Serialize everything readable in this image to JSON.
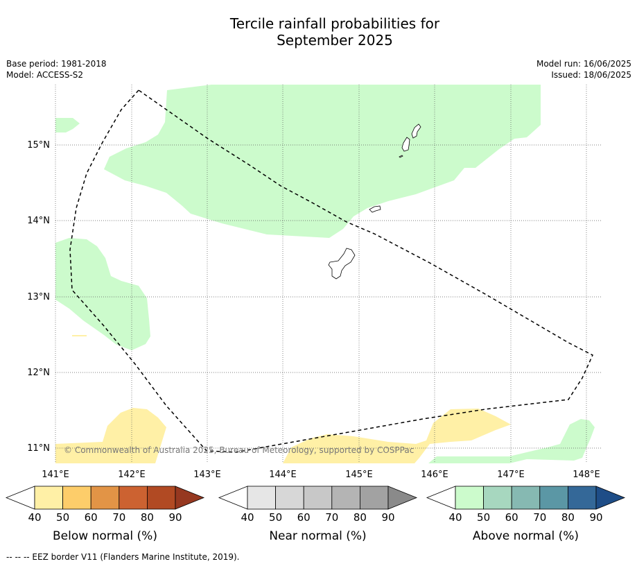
{
  "title_line1": "Tercile rainfall probabilities for",
  "title_line2": "September 2025",
  "base_period": "Base period: 1981-2018",
  "model": "Model: ACCESS-S2",
  "model_run": "Model run: 16/06/2025",
  "issued": "Issued: 18/06/2025",
  "copyright": "© Commonwealth of Australia 2025, Bureau of Meteorology, supported by COSPPac",
  "map": {
    "lon_labels": [
      "141°E",
      "142°E",
      "143°E",
      "144°E",
      "145°E",
      "146°E",
      "147°E",
      "148°E"
    ],
    "lat_labels": [
      "15°N",
      "14°N",
      "13°N",
      "12°N",
      "11°N"
    ]
  },
  "legends": [
    {
      "label": "Below normal (%)",
      "ticks": [
        "40",
        "50",
        "60",
        "70",
        "80",
        "90"
      ],
      "colors": [
        "#fff0a6",
        "#fdcd6a",
        "#e29446",
        "#cc6231",
        "#b14a23",
        "#963820"
      ]
    },
    {
      "label": "Near normal (%)",
      "ticks": [
        "40",
        "50",
        "60",
        "70",
        "80",
        "90"
      ],
      "colors": [
        "#e6e6e6",
        "#d7d7d7",
        "#c8c8c8",
        "#b4b4b4",
        "#a2a2a2",
        "#8a8a8a"
      ]
    },
    {
      "label": "Above normal (%)",
      "ticks": [
        "40",
        "50",
        "60",
        "70",
        "80",
        "90"
      ],
      "colors": [
        "#ccfbcc",
        "#a7d7bf",
        "#86b9b2",
        "#5b97a5",
        "#346898",
        "#1e4d87"
      ]
    }
  ],
  "footer": "--  --  -- EEZ border V11 (Flanders Marine Institute, 2019)."
}
